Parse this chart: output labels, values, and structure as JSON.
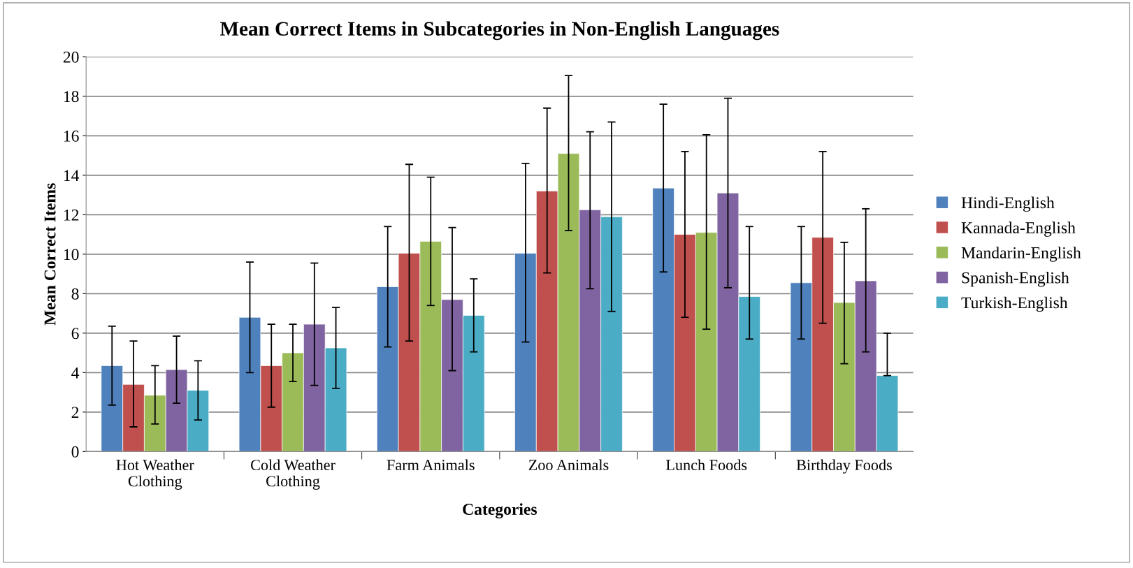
{
  "chart_data": {
    "type": "bar",
    "title": "Mean Correct Items in Subcategories in Non-English Languages",
    "xlabel": "Categories",
    "ylabel": "Mean Correct Items",
    "categories": [
      "Hot Weather\nClothing",
      "Cold Weather\nClothing",
      "Farm Animals",
      "Zoo Animals",
      "Lunch Foods",
      "Birthday Foods"
    ],
    "ylim": [
      0,
      20
    ],
    "yticks": [
      0,
      2,
      4,
      6,
      8,
      10,
      12,
      14,
      16,
      18,
      20
    ],
    "grid": "y",
    "legend": "right",
    "series": [
      {
        "name": "Hindi-English",
        "color": "#4f81bd",
        "values": [
          4.35,
          6.8,
          8.35,
          10.05,
          13.35,
          8.55
        ],
        "errors": [
          [
            2.35,
            6.35
          ],
          [
            4.0,
            9.6
          ],
          [
            5.3,
            11.4
          ],
          [
            5.55,
            14.6
          ],
          [
            9.1,
            17.6
          ],
          [
            5.7,
            11.4
          ]
        ]
      },
      {
        "name": "Kannada-English",
        "color": "#c0504d",
        "values": [
          3.4,
          4.35,
          10.05,
          13.2,
          11.0,
          10.85
        ],
        "errors": [
          [
            1.25,
            5.6
          ],
          [
            2.25,
            6.45
          ],
          [
            5.6,
            14.55
          ],
          [
            9.05,
            17.4
          ],
          [
            6.8,
            15.2
          ],
          [
            6.5,
            15.2
          ]
        ]
      },
      {
        "name": "Mandarin-English",
        "color": "#9bbb59",
        "values": [
          2.85,
          5.0,
          10.65,
          15.1,
          11.1,
          7.55
        ],
        "errors": [
          [
            1.4,
            4.35
          ],
          [
            3.55,
            6.45
          ],
          [
            7.4,
            13.9
          ],
          [
            11.2,
            19.05
          ],
          [
            6.2,
            16.05
          ],
          [
            4.45,
            10.6
          ]
        ]
      },
      {
        "name": "Spanish-English",
        "color": "#8064a2",
        "values": [
          4.15,
          6.45,
          7.7,
          12.25,
          13.1,
          8.65
        ],
        "errors": [
          [
            2.45,
            5.85
          ],
          [
            3.35,
            9.55
          ],
          [
            4.1,
            11.35
          ],
          [
            8.25,
            16.2
          ],
          [
            8.3,
            17.9
          ],
          [
            5.05,
            12.3
          ]
        ]
      },
      {
        "name": "Turkish-English",
        "color": "#4bacc6",
        "values": [
          3.1,
          5.25,
          6.9,
          11.9,
          7.85,
          3.85
        ],
        "errors": [
          [
            1.6,
            4.6
          ],
          [
            3.2,
            7.3
          ],
          [
            5.05,
            8.75
          ],
          [
            7.1,
            16.7
          ],
          [
            5.7,
            11.4
          ],
          [
            3.85,
            6.0
          ]
        ]
      }
    ]
  }
}
